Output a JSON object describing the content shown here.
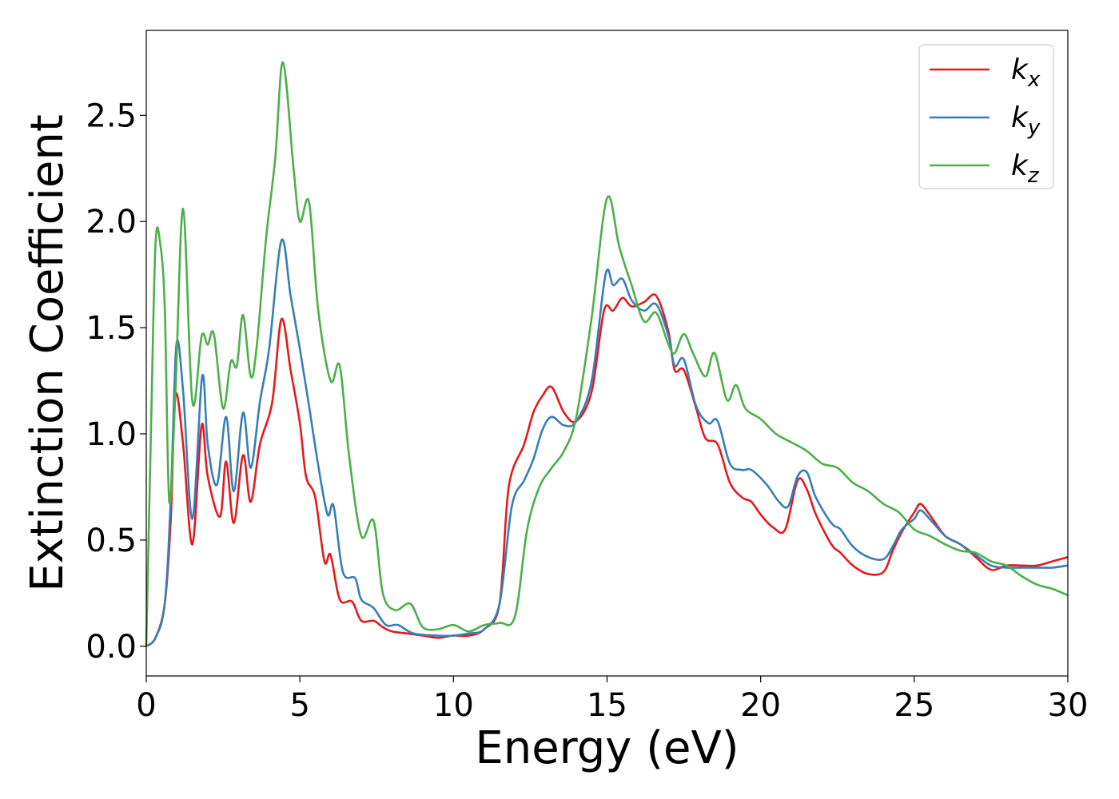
{
  "chart_data": {
    "type": "line",
    "title": "",
    "xlabel": "Energy (eV)",
    "ylabel": "Extinction Coefficient",
    "xlim": [
      0,
      30
    ],
    "ylim": [
      -0.14,
      2.9
    ],
    "xticks": [
      0,
      5,
      10,
      15,
      20,
      25,
      30
    ],
    "xtick_labels": [
      "0",
      "5",
      "10",
      "15",
      "20",
      "25",
      "30"
    ],
    "yticks": [
      0,
      0.5,
      1.0,
      1.5,
      2.0,
      2.5
    ],
    "ytick_labels": [
      "0.0",
      "0.5",
      "1.0",
      "1.5",
      "2.0",
      "2.5"
    ],
    "grid": false,
    "legend_position": "top-right",
    "series": [
      {
        "name": "k",
        "subscript": "x",
        "color": "#e41a1c",
        "points": [
          [
            0,
            0
          ],
          [
            0.3,
            0.04
          ],
          [
            0.6,
            0.2
          ],
          [
            0.8,
            0.6
          ],
          [
            0.95,
            1.18
          ],
          [
            1.2,
            0.95
          ],
          [
            1.5,
            0.48
          ],
          [
            1.8,
            1.04
          ],
          [
            2.0,
            0.8
          ],
          [
            2.4,
            0.61
          ],
          [
            2.6,
            0.87
          ],
          [
            2.85,
            0.58
          ],
          [
            3.15,
            0.9
          ],
          [
            3.4,
            0.68
          ],
          [
            3.7,
            0.95
          ],
          [
            4.1,
            1.15
          ],
          [
            4.4,
            1.54
          ],
          [
            4.7,
            1.3
          ],
          [
            5.0,
            1.05
          ],
          [
            5.2,
            0.8
          ],
          [
            5.5,
            0.7
          ],
          [
            5.8,
            0.4
          ],
          [
            6.0,
            0.43
          ],
          [
            6.3,
            0.22
          ],
          [
            6.7,
            0.21
          ],
          [
            7.0,
            0.12
          ],
          [
            7.4,
            0.12
          ],
          [
            7.7,
            0.09
          ],
          [
            8.0,
            0.07
          ],
          [
            8.5,
            0.06
          ],
          [
            9.0,
            0.05
          ],
          [
            9.5,
            0.04
          ],
          [
            10.0,
            0.05
          ],
          [
            10.5,
            0.05
          ],
          [
            11.0,
            0.08
          ],
          [
            11.5,
            0.2
          ],
          [
            11.8,
            0.75
          ],
          [
            12.3,
            0.95
          ],
          [
            12.6,
            1.1
          ],
          [
            12.9,
            1.18
          ],
          [
            13.2,
            1.22
          ],
          [
            13.6,
            1.1
          ],
          [
            14.0,
            1.06
          ],
          [
            14.5,
            1.2
          ],
          [
            14.9,
            1.58
          ],
          [
            15.2,
            1.58
          ],
          [
            15.5,
            1.64
          ],
          [
            15.8,
            1.6
          ],
          [
            16.2,
            1.62
          ],
          [
            16.6,
            1.65
          ],
          [
            17.0,
            1.48
          ],
          [
            17.2,
            1.3
          ],
          [
            17.5,
            1.3
          ],
          [
            17.9,
            1.12
          ],
          [
            18.2,
            0.98
          ],
          [
            18.6,
            0.95
          ],
          [
            19.0,
            0.77
          ],
          [
            19.4,
            0.7
          ],
          [
            19.7,
            0.68
          ],
          [
            20.0,
            0.62
          ],
          [
            20.4,
            0.56
          ],
          [
            20.8,
            0.55
          ],
          [
            21.2,
            0.78
          ],
          [
            21.5,
            0.74
          ],
          [
            21.8,
            0.62
          ],
          [
            22.3,
            0.48
          ],
          [
            22.6,
            0.44
          ],
          [
            23.0,
            0.38
          ],
          [
            23.5,
            0.34
          ],
          [
            24.0,
            0.35
          ],
          [
            24.3,
            0.45
          ],
          [
            24.6,
            0.54
          ],
          [
            25.0,
            0.63
          ],
          [
            25.2,
            0.67
          ],
          [
            25.5,
            0.62
          ],
          [
            26.0,
            0.52
          ],
          [
            26.5,
            0.48
          ],
          [
            27.0,
            0.42
          ],
          [
            27.5,
            0.36
          ],
          [
            28.0,
            0.38
          ],
          [
            28.5,
            0.38
          ],
          [
            29.0,
            0.38
          ],
          [
            29.5,
            0.4
          ],
          [
            30.0,
            0.42
          ]
        ]
      },
      {
        "name": "k",
        "subscript": "y",
        "color": "#377eb8",
        "points": [
          [
            0,
            0
          ],
          [
            0.3,
            0.04
          ],
          [
            0.6,
            0.2
          ],
          [
            0.8,
            0.7
          ],
          [
            0.98,
            1.42
          ],
          [
            1.2,
            1.2
          ],
          [
            1.5,
            0.6
          ],
          [
            1.82,
            1.27
          ],
          [
            2.0,
            0.95
          ],
          [
            2.3,
            0.76
          ],
          [
            2.6,
            1.08
          ],
          [
            2.85,
            0.73
          ],
          [
            3.15,
            1.1
          ],
          [
            3.4,
            0.84
          ],
          [
            3.7,
            1.15
          ],
          [
            4.0,
            1.4
          ],
          [
            4.4,
            1.91
          ],
          [
            4.7,
            1.65
          ],
          [
            5.0,
            1.4
          ],
          [
            5.3,
            1.13
          ],
          [
            5.6,
            0.85
          ],
          [
            5.9,
            0.62
          ],
          [
            6.1,
            0.66
          ],
          [
            6.4,
            0.35
          ],
          [
            6.8,
            0.32
          ],
          [
            7.0,
            0.22
          ],
          [
            7.4,
            0.18
          ],
          [
            7.8,
            0.1
          ],
          [
            8.2,
            0.1
          ],
          [
            8.7,
            0.06
          ],
          [
            9.5,
            0.05
          ],
          [
            10.0,
            0.05
          ],
          [
            10.5,
            0.06
          ],
          [
            11.0,
            0.08
          ],
          [
            11.5,
            0.2
          ],
          [
            11.9,
            0.66
          ],
          [
            12.3,
            0.78
          ],
          [
            12.6,
            0.88
          ],
          [
            12.9,
            1.02
          ],
          [
            13.2,
            1.08
          ],
          [
            13.6,
            1.04
          ],
          [
            14.0,
            1.06
          ],
          [
            14.5,
            1.25
          ],
          [
            14.95,
            1.75
          ],
          [
            15.2,
            1.7
          ],
          [
            15.5,
            1.73
          ],
          [
            15.8,
            1.63
          ],
          [
            16.2,
            1.58
          ],
          [
            16.6,
            1.61
          ],
          [
            17.0,
            1.46
          ],
          [
            17.2,
            1.32
          ],
          [
            17.5,
            1.35
          ],
          [
            17.9,
            1.13
          ],
          [
            18.3,
            1.05
          ],
          [
            18.6,
            1.06
          ],
          [
            19.0,
            0.86
          ],
          [
            19.4,
            0.83
          ],
          [
            19.7,
            0.83
          ],
          [
            20.2,
            0.76
          ],
          [
            20.6,
            0.68
          ],
          [
            20.9,
            0.66
          ],
          [
            21.2,
            0.8
          ],
          [
            21.5,
            0.82
          ],
          [
            21.8,
            0.7
          ],
          [
            22.3,
            0.58
          ],
          [
            22.6,
            0.55
          ],
          [
            23.0,
            0.47
          ],
          [
            23.5,
            0.42
          ],
          [
            24.0,
            0.41
          ],
          [
            24.3,
            0.47
          ],
          [
            24.6,
            0.55
          ],
          [
            25.0,
            0.6
          ],
          [
            25.2,
            0.64
          ],
          [
            25.5,
            0.6
          ],
          [
            26.0,
            0.52
          ],
          [
            26.5,
            0.48
          ],
          [
            27.0,
            0.43
          ],
          [
            27.5,
            0.38
          ],
          [
            28.0,
            0.37
          ],
          [
            28.5,
            0.37
          ],
          [
            29.0,
            0.37
          ],
          [
            29.5,
            0.37
          ],
          [
            30.0,
            0.38
          ]
        ]
      },
      {
        "name": "k",
        "subscript": "z",
        "color": "#4daf4a",
        "points": [
          [
            0,
            0
          ],
          [
            0.15,
            1.0
          ],
          [
            0.3,
            1.89
          ],
          [
            0.45,
            1.9
          ],
          [
            0.6,
            1.6
          ],
          [
            0.75,
            0.68
          ],
          [
            0.95,
            1.2
          ],
          [
            1.2,
            2.06
          ],
          [
            1.5,
            1.15
          ],
          [
            1.8,
            1.46
          ],
          [
            2.0,
            1.42
          ],
          [
            2.2,
            1.47
          ],
          [
            2.5,
            1.12
          ],
          [
            2.75,
            1.34
          ],
          [
            2.95,
            1.32
          ],
          [
            3.15,
            1.56
          ],
          [
            3.4,
            1.27
          ],
          [
            3.6,
            1.42
          ],
          [
            3.9,
            1.92
          ],
          [
            4.2,
            2.3
          ],
          [
            4.45,
            2.75
          ],
          [
            4.8,
            2.24
          ],
          [
            5.0,
            2.0
          ],
          [
            5.3,
            2.09
          ],
          [
            5.6,
            1.58
          ],
          [
            6.0,
            1.25
          ],
          [
            6.3,
            1.32
          ],
          [
            6.6,
            0.9
          ],
          [
            7.0,
            0.52
          ],
          [
            7.4,
            0.59
          ],
          [
            7.7,
            0.25
          ],
          [
            8.1,
            0.17
          ],
          [
            8.6,
            0.2
          ],
          [
            9.0,
            0.09
          ],
          [
            9.5,
            0.08
          ],
          [
            10.0,
            0.1
          ],
          [
            10.5,
            0.07
          ],
          [
            11.0,
            0.1
          ],
          [
            11.5,
            0.11
          ],
          [
            12.0,
            0.14
          ],
          [
            12.4,
            0.55
          ],
          [
            12.8,
            0.75
          ],
          [
            13.2,
            0.84
          ],
          [
            13.6,
            0.92
          ],
          [
            14.0,
            1.08
          ],
          [
            14.5,
            1.55
          ],
          [
            15.0,
            2.11
          ],
          [
            15.4,
            1.88
          ],
          [
            15.8,
            1.7
          ],
          [
            16.2,
            1.53
          ],
          [
            16.6,
            1.57
          ],
          [
            17.0,
            1.42
          ],
          [
            17.2,
            1.38
          ],
          [
            17.5,
            1.47
          ],
          [
            17.8,
            1.38
          ],
          [
            18.2,
            1.27
          ],
          [
            18.5,
            1.38
          ],
          [
            18.9,
            1.16
          ],
          [
            19.2,
            1.23
          ],
          [
            19.5,
            1.12
          ],
          [
            20.0,
            1.07
          ],
          [
            20.5,
            1.0
          ],
          [
            21.0,
            0.96
          ],
          [
            21.5,
            0.92
          ],
          [
            22.0,
            0.86
          ],
          [
            22.5,
            0.84
          ],
          [
            23.0,
            0.77
          ],
          [
            23.5,
            0.73
          ],
          [
            24.0,
            0.67
          ],
          [
            24.5,
            0.63
          ],
          [
            25.0,
            0.55
          ],
          [
            25.5,
            0.52
          ],
          [
            26.0,
            0.48
          ],
          [
            26.5,
            0.45
          ],
          [
            27.0,
            0.44
          ],
          [
            27.5,
            0.4
          ],
          [
            28.0,
            0.38
          ],
          [
            28.5,
            0.33
          ],
          [
            29.0,
            0.29
          ],
          [
            29.5,
            0.27
          ],
          [
            30.0,
            0.24
          ]
        ]
      }
    ]
  }
}
